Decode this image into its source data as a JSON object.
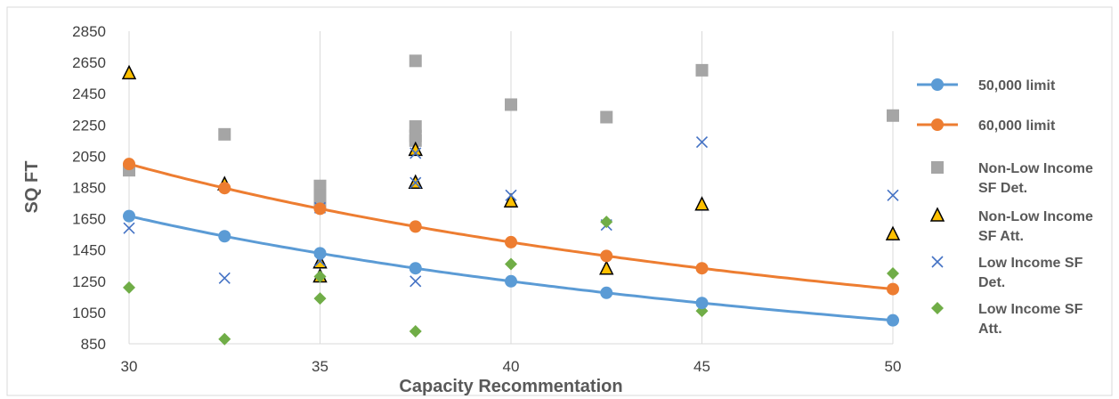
{
  "chart_data": {
    "type": "scatter",
    "title": "",
    "xlabel": "Capacity Recommentation",
    "ylabel": "SQ FT",
    "xlim": [
      30,
      50
    ],
    "ylim": [
      850,
      2850
    ],
    "xticks": [
      30,
      35,
      40,
      45,
      50
    ],
    "yticks": [
      850,
      1050,
      1250,
      1450,
      1650,
      1850,
      2050,
      2250,
      2450,
      2650,
      2850
    ],
    "grid": "vertical",
    "legend_position": "right",
    "series": [
      {
        "name": "50,000 limit",
        "kind": "line",
        "marker": "circle",
        "color": "#5B9BD5",
        "x": [
          30,
          32.5,
          35,
          37.5,
          40,
          42.5,
          45,
          50
        ],
        "y": [
          1667,
          1538,
          1429,
          1333,
          1250,
          1176,
          1111,
          1000
        ]
      },
      {
        "name": "60,000 limit",
        "kind": "line",
        "marker": "circle",
        "color": "#ED7D31",
        "x": [
          30,
          32.5,
          35,
          37.5,
          40,
          42.5,
          45,
          50
        ],
        "y": [
          2000,
          1846,
          1714,
          1600,
          1500,
          1412,
          1333,
          1200
        ]
      },
      {
        "name": "Non-Low Income SF Det.",
        "kind": "scatter",
        "marker": "square",
        "color": "#A5A5A5",
        "x": [
          30,
          32.5,
          35,
          35,
          35,
          37.5,
          37.5,
          37.5,
          37.5,
          40,
          42.5,
          45,
          50
        ],
        "y": [
          1960,
          2190,
          1860,
          1800,
          1760,
          2660,
          2240,
          2180,
          2150,
          2380,
          2300,
          2600,
          2310
        ]
      },
      {
        "name": "Non-Low Income SF Att.",
        "kind": "scatter",
        "marker": "triangle",
        "color": "#FFC000",
        "x": [
          30,
          32.5,
          35,
          35,
          37.5,
          37.5,
          40,
          42.5,
          45,
          50
        ],
        "y": [
          2580,
          1870,
          1370,
          1280,
          2090,
          1880,
          1760,
          1330,
          1740,
          1550
        ]
      },
      {
        "name": "Low Income SF Det.",
        "kind": "scatter",
        "marker": "x",
        "color": "#4472C4",
        "x": [
          30,
          32.5,
          35,
          35,
          37.5,
          37.5,
          37.5,
          40,
          42.5,
          45,
          50
        ],
        "y": [
          1590,
          1270,
          1720,
          1380,
          2070,
          1880,
          1250,
          1800,
          1610,
          2140,
          1800
        ]
      },
      {
        "name": "Low Income SF Att.",
        "kind": "scatter",
        "marker": "diamond",
        "color": "#70AD47",
        "x": [
          30,
          32.5,
          35,
          35,
          37.5,
          40,
          42.5,
          45,
          50
        ],
        "y": [
          1210,
          880,
          1280,
          1140,
          930,
          1360,
          1630,
          1060,
          1300
        ]
      }
    ],
    "legend": [
      {
        "label_lines": [
          "50,000 limit"
        ]
      },
      {
        "label_lines": [
          "60,000 limit"
        ]
      },
      {
        "label_lines": [
          "Non-Low Income",
          "SF Det."
        ]
      },
      {
        "label_lines": [
          "Non-Low Income",
          "SF Att."
        ]
      },
      {
        "label_lines": [
          "Low Income SF",
          "Det."
        ]
      },
      {
        "label_lines": [
          "Low Income SF",
          "Att."
        ]
      }
    ]
  }
}
